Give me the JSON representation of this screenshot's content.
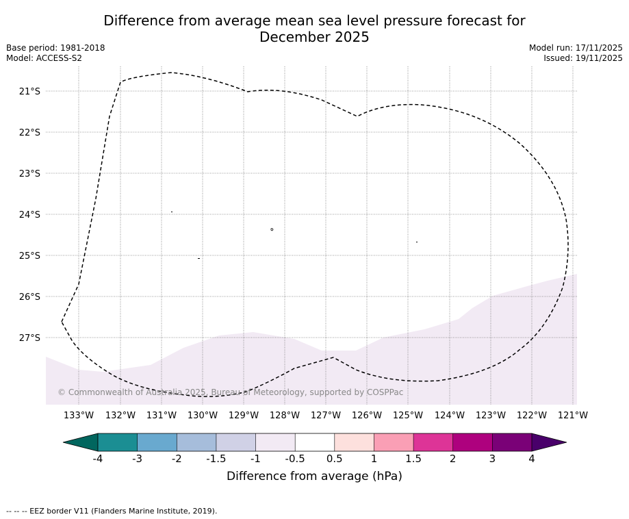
{
  "title_line1": "Difference from average mean sea level pressure forecast for",
  "title_line2": "December 2025",
  "base_period": "Base period: 1981-2018",
  "model": "Model: ACCESS-S2",
  "model_run": "Model run: 17/11/2025",
  "issued": "Issued: 19/11/2025",
  "copyright": "© Commonwealth of Australia 2025, Bureau of Meteorology, supported by COSPPac",
  "lat_labels": [
    "21°S",
    "22°S",
    "23°S",
    "24°S",
    "25°S",
    "26°S",
    "27°S"
  ],
  "lon_labels": [
    "133°W",
    "132°W",
    "131°W",
    "130°W",
    "129°W",
    "128°W",
    "127°W",
    "126°W",
    "125°W",
    "124°W",
    "123°W",
    "122°W",
    "121°W"
  ],
  "colorbar": {
    "title": "Difference from average (hPa)",
    "ticks": [
      "-4",
      "-3",
      "-2",
      "-1.5",
      "-1",
      "-0.5",
      "0.5",
      "1",
      "1.5",
      "2",
      "3",
      "4"
    ],
    "colors": [
      "#1b8e93",
      "#69a9cf",
      "#a6bddb",
      "#d0d1e6",
      "#f2eaf4",
      "#ffffff",
      "#fde0dd",
      "#fa9fb5",
      "#dd3497",
      "#ae017e",
      "#7a0177"
    ],
    "under_color": "#01665e",
    "over_color": "#49006a"
  },
  "footer": "--  --  -- EEZ border V11 (Flanders Marine Institute, 2019)."
}
